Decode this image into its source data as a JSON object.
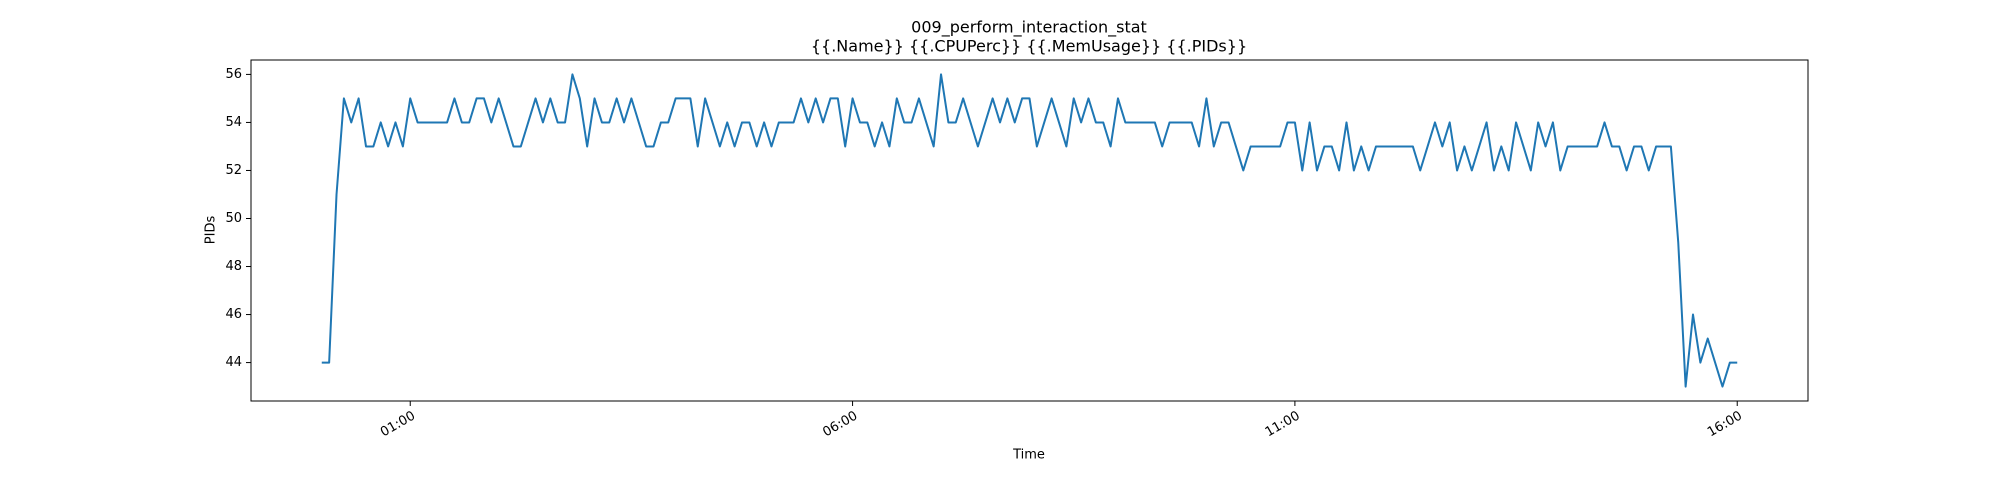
{
  "chart_data": {
    "type": "line",
    "title": [
      "009_perform_interaction_stat",
      "{{.Name}} {{.CPUPerc}} {{.MemUsage}}  {{.PIDs}}"
    ],
    "xlabel": "Time",
    "ylabel": "PIDs",
    "xlim": [
      -48,
      1008
    ],
    "xticks": [
      {
        "value": 60,
        "label": "01:00"
      },
      {
        "value": 360,
        "label": "06:00"
      },
      {
        "value": 660,
        "label": "11:00"
      },
      {
        "value": 960,
        "label": "16:00"
      }
    ],
    "ylim": [
      42.4,
      56.6
    ],
    "yticks": [
      44,
      46,
      48,
      50,
      52,
      54,
      56
    ],
    "x": [
      0,
      5,
      10,
      15,
      20,
      25,
      30,
      35,
      40,
      45,
      50,
      55,
      60,
      65,
      70,
      75,
      80,
      85,
      90,
      95,
      100,
      105,
      110,
      115,
      120,
      125,
      130,
      135,
      140,
      145,
      150,
      155,
      160,
      165,
      170,
      175,
      180,
      185,
      190,
      195,
      200,
      205,
      210,
      215,
      220,
      225,
      230,
      235,
      240,
      245,
      250,
      255,
      260,
      265,
      270,
      275,
      280,
      285,
      290,
      295,
      300,
      305,
      310,
      315,
      320,
      325,
      330,
      335,
      340,
      345,
      350,
      355,
      360,
      365,
      370,
      375,
      380,
      385,
      390,
      395,
      400,
      405,
      410,
      415,
      420,
      425,
      430,
      435,
      440,
      445,
      450,
      455,
      460,
      465,
      470,
      475,
      480,
      485,
      490,
      495,
      500,
      505,
      510,
      515,
      520,
      525,
      530,
      535,
      540,
      545,
      550,
      555,
      560,
      565,
      570,
      575,
      580,
      585,
      590,
      595,
      600,
      605,
      610,
      615,
      620,
      625,
      630,
      635,
      640,
      645,
      650,
      655,
      660,
      665,
      670,
      675,
      680,
      685,
      690,
      695,
      700,
      705,
      710,
      715,
      720,
      725,
      730,
      735,
      740,
      745,
      750,
      755,
      760,
      765,
      770,
      775,
      780,
      785,
      790,
      795,
      800,
      805,
      810,
      815,
      820,
      825,
      830,
      835,
      840,
      845,
      850,
      855,
      860,
      865,
      870,
      875,
      880,
      885,
      890,
      895,
      900,
      905,
      910,
      915,
      920,
      925,
      930,
      935,
      940,
      945,
      950,
      955,
      960
    ],
    "series": [
      {
        "name": "PIDs",
        "color": "#1f77b4",
        "values": [
          44,
          44,
          51,
          55,
          54,
          55,
          53,
          53,
          54,
          53,
          54,
          53,
          55,
          54,
          54,
          54,
          54,
          54,
          55,
          54,
          54,
          55,
          55,
          54,
          55,
          54,
          53,
          53,
          54,
          55,
          54,
          55,
          54,
          54,
          56,
          55,
          53,
          55,
          54,
          54,
          55,
          54,
          55,
          54,
          53,
          53,
          54,
          54,
          55,
          55,
          55,
          53,
          55,
          54,
          53,
          54,
          53,
          54,
          54,
          53,
          54,
          53,
          54,
          54,
          54,
          55,
          54,
          55,
          54,
          55,
          55,
          53,
          55,
          54,
          54,
          53,
          54,
          53,
          55,
          54,
          54,
          55,
          54,
          53,
          56,
          54,
          54,
          55,
          54,
          53,
          54,
          55,
          54,
          55,
          54,
          55,
          55,
          53,
          54,
          55,
          54,
          53,
          55,
          54,
          55,
          54,
          54,
          53,
          55,
          54,
          54,
          54,
          54,
          54,
          53,
          54,
          54,
          54,
          54,
          53,
          55,
          53,
          54,
          54,
          53,
          52,
          53,
          53,
          53,
          53,
          53,
          54,
          54,
          52,
          54,
          52,
          53,
          53,
          52,
          54,
          52,
          53,
          52,
          53,
          53,
          53,
          53,
          53,
          53,
          52,
          53,
          54,
          53,
          54,
          52,
          53,
          52,
          53,
          54,
          52,
          53,
          52,
          54,
          53,
          52,
          54,
          53,
          54,
          52,
          53,
          53,
          53,
          53,
          53,
          54,
          53,
          53,
          52,
          53,
          53,
          52,
          53,
          53,
          53,
          49,
          43,
          46,
          44,
          45,
          44,
          43,
          44,
          44
        ]
      }
    ]
  }
}
